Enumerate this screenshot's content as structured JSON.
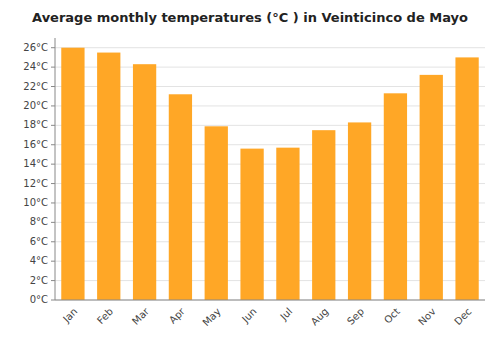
{
  "chart_data": {
    "type": "bar",
    "title": "Average monthly temperatures (°C ) in Veinticinco de Mayo",
    "categories": [
      "Jan",
      "Feb",
      "Mar",
      "Apr",
      "May",
      "Jun",
      "Jul",
      "Aug",
      "Sep",
      "Oct",
      "Nov",
      "Dec"
    ],
    "values": [
      26.0,
      25.5,
      24.3,
      21.2,
      17.9,
      15.6,
      15.7,
      17.5,
      18.3,
      21.3,
      23.2,
      25.0
    ],
    "color": "#FFA726",
    "ylim": [
      0,
      27
    ],
    "yticks": [
      {
        "value": 0,
        "label": "0°C"
      },
      {
        "value": 2,
        "label": "2°C"
      },
      {
        "value": 4,
        "label": "4°C"
      },
      {
        "value": 6,
        "label": "6°C"
      },
      {
        "value": 8,
        "label": "8°C"
      },
      {
        "value": 10,
        "label": "10°C"
      },
      {
        "value": 12,
        "label": "12°C"
      },
      {
        "value": 14,
        "label": "14°C"
      },
      {
        "value": 16,
        "label": "16°C"
      },
      {
        "value": 18,
        "label": "18°C"
      },
      {
        "value": 20,
        "label": "20°C"
      },
      {
        "value": 22,
        "label": "22°C"
      },
      {
        "value": 24,
        "label": "24°C"
      },
      {
        "value": 26,
        "label": "26°C"
      }
    ],
    "grid": true
  }
}
